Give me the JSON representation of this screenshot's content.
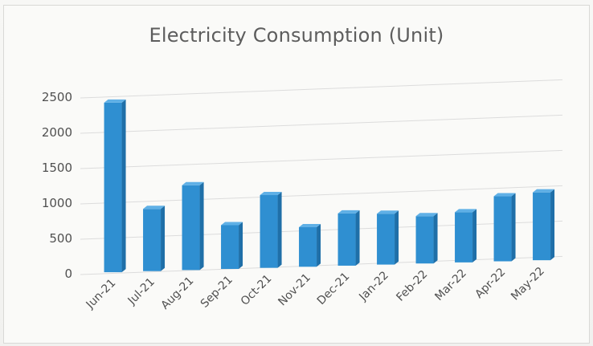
{
  "chart_data": {
    "type": "bar",
    "title": "Electricity Consumption (Unit)",
    "xlabel": "",
    "ylabel": "",
    "ylim": [
      0,
      2500
    ],
    "yticks": [
      0,
      500,
      1000,
      1500,
      2000,
      2500
    ],
    "grid": true,
    "categories": [
      "Jun-21",
      "Jul-21",
      "Aug-21",
      "Sep-21",
      "Oct-21",
      "Nov-21",
      "Dec-21",
      "Jan-22",
      "Feb-22",
      "Mar-22",
      "Apr-22",
      "May-22"
    ],
    "values": [
      2400,
      880,
      1200,
      620,
      1030,
      560,
      740,
      720,
      670,
      710,
      920,
      960
    ],
    "bar_color": "#2f8fd1"
  }
}
